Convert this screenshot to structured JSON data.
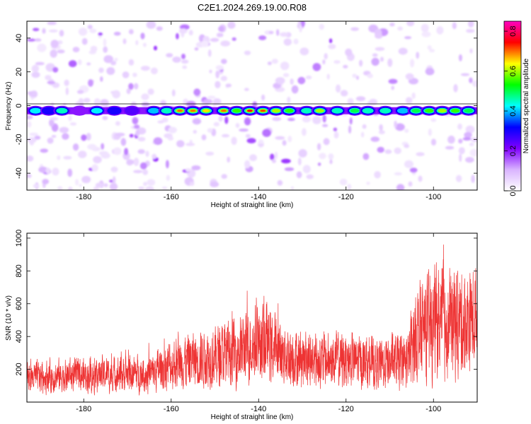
{
  "title": "C2E1.2024.269.19.00.R08",
  "chart_data": [
    {
      "type": "heatmap",
      "xlabel": "Height of straight line (km)",
      "ylabel": "Frequency (Hz)",
      "xlim": [
        -193,
        -90
      ],
      "ylim": [
        -50,
        50
      ],
      "x_ticks": [
        -180,
        -160,
        -140,
        -120,
        -100
      ],
      "y_ticks": [
        -40,
        -20,
        0,
        20,
        40
      ],
      "x_tick_labels": [
        "-180",
        "-160",
        "-140",
        "-120",
        "-100"
      ],
      "y_tick_labels": [
        "-40",
        "-20",
        "0",
        "20",
        "40"
      ],
      "band_center_hz": -3,
      "colorbar": {
        "label": "Normalized spectral amplitude",
        "range": [
          0.0,
          0.85
        ],
        "ticks": [
          0.0,
          0.2,
          0.4,
          0.6,
          0.8
        ],
        "tick_labels": [
          "0.0",
          "0.2",
          "0.4",
          "0.6",
          "0.8"
        ],
        "colors": [
          "#ffffff",
          "#d9b3ff",
          "#8000ff",
          "#0000ff",
          "#00ffff",
          "#00ff00",
          "#ffff00",
          "#ff0000",
          "#ff00c0"
        ]
      },
      "band_blobs": [
        {
          "x": -191,
          "amp": 0.42
        },
        {
          "x": -188,
          "amp": 0.3
        },
        {
          "x": -185,
          "amp": 0.45
        },
        {
          "x": -181,
          "amp": 0.2
        },
        {
          "x": -177,
          "amp": 0.42
        },
        {
          "x": -173,
          "amp": 0.3
        },
        {
          "x": -169,
          "amp": 0.25
        },
        {
          "x": -164,
          "amp": 0.4
        },
        {
          "x": -161,
          "amp": 0.45
        },
        {
          "x": -158,
          "amp": 0.7
        },
        {
          "x": -155,
          "amp": 0.7
        },
        {
          "x": -152,
          "amp": 0.65
        },
        {
          "x": -148,
          "amp": 0.7
        },
        {
          "x": -145,
          "amp": 0.55
        },
        {
          "x": -142,
          "amp": 0.75
        },
        {
          "x": -139,
          "amp": 0.72
        },
        {
          "x": -136,
          "amp": 0.6
        },
        {
          "x": -133,
          "amp": 0.55
        },
        {
          "x": -129,
          "amp": 0.45
        },
        {
          "x": -126,
          "amp": 0.6
        },
        {
          "x": -122,
          "amp": 0.45
        },
        {
          "x": -118,
          "amp": 0.5
        },
        {
          "x": -115,
          "amp": 0.45
        },
        {
          "x": -111,
          "amp": 0.45
        },
        {
          "x": -107,
          "amp": 0.4
        },
        {
          "x": -104,
          "amp": 0.5
        },
        {
          "x": -101,
          "amp": 0.55
        },
        {
          "x": -98,
          "amp": 0.6
        },
        {
          "x": -95,
          "amp": 0.55
        },
        {
          "x": -92,
          "amp": 0.5
        }
      ]
    },
    {
      "type": "line",
      "xlabel": "Height of straight line (km)",
      "ylabel": "SNR (10 * v/v)",
      "xlim": [
        -193,
        -90
      ],
      "ylim": [
        0,
        1030
      ],
      "x_ticks": [
        -180,
        -160,
        -140,
        -120,
        -100
      ],
      "y_ticks": [
        200,
        400,
        600,
        800,
        1000
      ],
      "x_tick_labels": [
        "-180",
        "-160",
        "-140",
        "-120",
        "-100"
      ],
      "y_tick_labels": [
        "200",
        "400",
        "600",
        "800",
        "1000"
      ],
      "line_color": "#ee3333",
      "envelope": [
        {
          "x": -193,
          "mean": 150,
          "spread": 120
        },
        {
          "x": -185,
          "mean": 160,
          "spread": 130
        },
        {
          "x": -175,
          "mean": 170,
          "spread": 140
        },
        {
          "x": -165,
          "mean": 175,
          "spread": 150
        },
        {
          "x": -160,
          "mean": 230,
          "spread": 200
        },
        {
          "x": -155,
          "mean": 260,
          "spread": 220
        },
        {
          "x": -150,
          "mean": 280,
          "spread": 240
        },
        {
          "x": -145,
          "mean": 310,
          "spread": 260
        },
        {
          "x": -139,
          "mean": 380,
          "spread": 320
        },
        {
          "x": -135,
          "mean": 300,
          "spread": 250
        },
        {
          "x": -128,
          "mean": 250,
          "spread": 220
        },
        {
          "x": -120,
          "mean": 260,
          "spread": 220
        },
        {
          "x": -113,
          "mean": 230,
          "spread": 200
        },
        {
          "x": -106,
          "mean": 250,
          "spread": 220
        },
        {
          "x": -104,
          "mean": 420,
          "spread": 380
        },
        {
          "x": -98,
          "mean": 500,
          "spread": 450
        },
        {
          "x": -94,
          "mean": 480,
          "spread": 420
        },
        {
          "x": -90,
          "mean": 520,
          "spread": 400
        }
      ]
    }
  ]
}
